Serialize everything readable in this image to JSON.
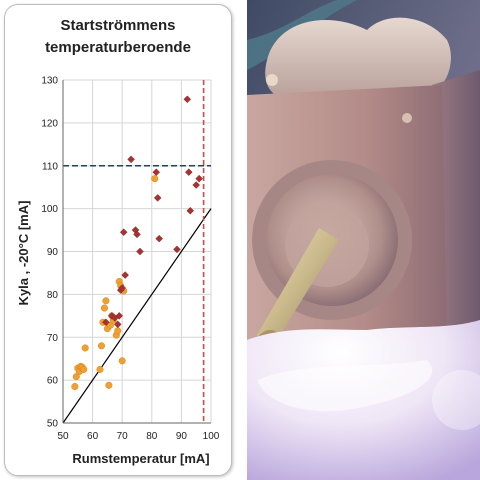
{
  "chart_data": {
    "type": "scatter",
    "title": "Startströmmens temperaturberoende",
    "title_lines": [
      "Startströmmens",
      "temperaturberoende"
    ],
    "xlabel": "Rumstemperatur [mA]",
    "ylabel": "Kyla , -20°C [mA]",
    "xlim": [
      50,
      100
    ],
    "ylim": [
      50,
      130
    ],
    "xticks": [
      50,
      60,
      70,
      80,
      90,
      100
    ],
    "yticks": [
      50,
      60,
      70,
      80,
      90,
      100,
      110,
      120,
      130
    ],
    "grid": true,
    "series": [
      {
        "marker": "circle",
        "color": "#f0a030",
        "points": [
          [
            54,
            58.5
          ],
          [
            54.5,
            60.8
          ],
          [
            55,
            62.8
          ],
          [
            55.5,
            62
          ],
          [
            56,
            63.2
          ],
          [
            56.5,
            63
          ],
          [
            57,
            62.5
          ],
          [
            57.5,
            67.5
          ],
          [
            62.5,
            62.5
          ],
          [
            63,
            68
          ],
          [
            63.5,
            73.5
          ],
          [
            64,
            76.8
          ],
          [
            64.5,
            78.5
          ],
          [
            65,
            72
          ],
          [
            65.5,
            58.8
          ],
          [
            66,
            72.8
          ],
          [
            66.5,
            75
          ],
          [
            67,
            74
          ],
          [
            68,
            70.5
          ],
          [
            68.5,
            71.5
          ],
          [
            69,
            83
          ],
          [
            69.5,
            82
          ],
          [
            70,
            64.5
          ],
          [
            70.5,
            80.8
          ],
          [
            81,
            107
          ]
        ]
      },
      {
        "marker": "diamond",
        "color": "#a83232",
        "points": [
          [
            64.5,
            73.5
          ],
          [
            66.5,
            75
          ],
          [
            67.5,
            74.5
          ],
          [
            68.5,
            73
          ],
          [
            69,
            75
          ],
          [
            69.5,
            81
          ],
          [
            70,
            81.5
          ],
          [
            70.5,
            94.5
          ],
          [
            71,
            84.5
          ],
          [
            73,
            111.5
          ],
          [
            74.5,
            95
          ],
          [
            75,
            94
          ],
          [
            76,
            90
          ],
          [
            81.5,
            108.5
          ],
          [
            82,
            102.5
          ],
          [
            82.5,
            93
          ],
          [
            88.5,
            90.5
          ],
          [
            92,
            125.5
          ],
          [
            92.5,
            108.5
          ],
          [
            93,
            99.5
          ],
          [
            95,
            105.5
          ],
          [
            96,
            107
          ]
        ]
      }
    ],
    "reference_lines": [
      {
        "kind": "diagonal",
        "from": [
          50,
          50
        ],
        "to": [
          100,
          100
        ],
        "color": "#000000",
        "style": "solid"
      },
      {
        "kind": "horizontal",
        "y": 110,
        "color": "#1f3a80",
        "style": "dashed"
      },
      {
        "kind": "vertical",
        "x": 97.5,
        "color": "#c0504d",
        "style": "dashed"
      }
    ]
  },
  "photo": {
    "subject": "stepper-motor-in-ice",
    "colors": {
      "ice": "#e8dff0",
      "motor_body": "#b8908c",
      "shaft": "#d6c8a0",
      "accent": "#7a6fb0"
    }
  }
}
